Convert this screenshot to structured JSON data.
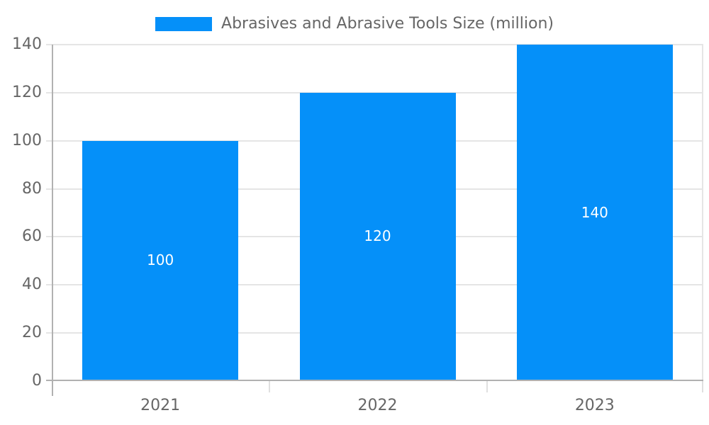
{
  "legend": {
    "label": "Abrasives and Abrasive Tools Size (million)",
    "swatch_color": "#0590f9"
  },
  "chart_data": {
    "type": "bar",
    "title": "Abrasives and Abrasive Tools Size (million)",
    "categories": [
      "2021",
      "2022",
      "2023"
    ],
    "series": [
      {
        "name": "Abrasives and Abrasive Tools Size (million)",
        "values": [
          100,
          120,
          140
        ]
      }
    ],
    "bar_value_labels": [
      "100",
      "120",
      "140"
    ],
    "xlabel": "",
    "ylabel": "",
    "ylim": [
      0,
      140
    ],
    "yticks": [
      0,
      20,
      40,
      60,
      80,
      100,
      120,
      140
    ],
    "grid": true,
    "legend_position": "top-center",
    "colors": {
      "bar": "#0590f9",
      "bar_label_text": "#ffffff",
      "tick_text": "#666666",
      "axis_line": "#b1b1b1",
      "gridline": "#e5e5e5"
    }
  }
}
